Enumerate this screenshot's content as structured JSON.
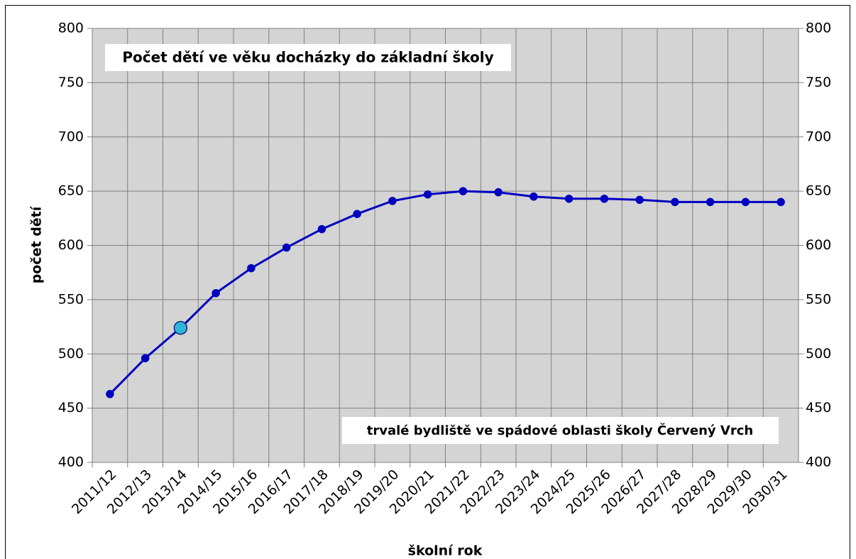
{
  "chart_data": {
    "type": "line",
    "title": "Počet dětí ve věku docházky do základní školy",
    "annotation": "trvalé bydliště ve spádové oblasti školy Červený Vrch",
    "x_label": "školní rok",
    "y_label": "počet dětí",
    "categories": [
      "2011/12",
      "2012/13",
      "2013/14",
      "2014/15",
      "2015/16",
      "2016/17",
      "2017/18",
      "2018/19",
      "2019/20",
      "2020/21",
      "2021/22",
      "2022/23",
      "2023/24",
      "2024/25",
      "2025/26",
      "2026/27",
      "2027/28",
      "2028/29",
      "2029/30",
      "2030/31"
    ],
    "series": [
      {
        "color": "#0000c0",
        "values": [
          463,
          496,
          524,
          556,
          579,
          598,
          615,
          629,
          641,
          647,
          650,
          649,
          645,
          643,
          643,
          642,
          640,
          640,
          640,
          640
        ]
      }
    ],
    "highlight_index": 2,
    "highlight_color": "#33b5d9",
    "ylim": [
      400,
      800
    ],
    "yticks": [
      400,
      450,
      500,
      550,
      600,
      650,
      700,
      750,
      800
    ],
    "y2lim": [
      400,
      800
    ],
    "y2ticks": [
      400,
      450,
      500,
      550,
      600,
      650,
      700,
      750,
      800
    ],
    "grid": true,
    "background": "#d4d4d4"
  }
}
